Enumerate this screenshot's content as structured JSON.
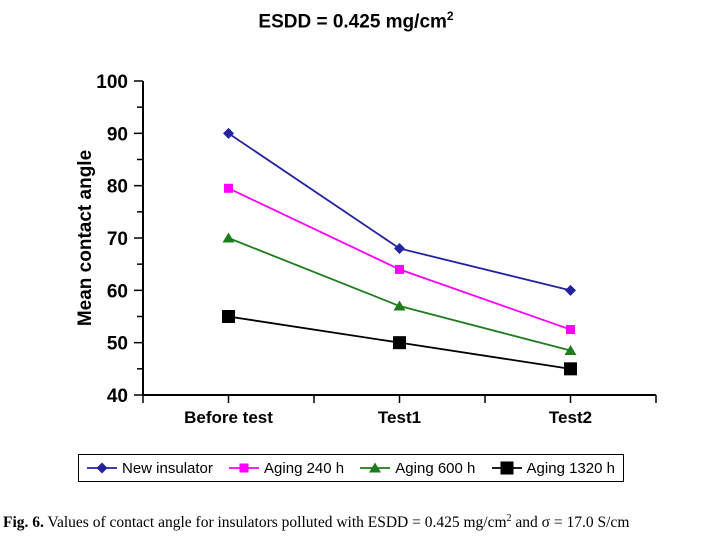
{
  "title": {
    "text": "ESDD = 0.425 mg/cm",
    "superscript": "2"
  },
  "caption": {
    "fig_label": "Fig. 6.",
    "text": " Values of contact angle for insulators polluted with ESDD = 0.425 mg/cm",
    "superscript": "2",
    "text_after": " and σ = 17.0 S/cm"
  },
  "chart_data": {
    "type": "line",
    "title": "ESDD = 0.425 mg/cm2",
    "xlabel": "",
    "ylabel": "Mean contact angle",
    "categories": [
      "Before test",
      "Test1",
      "Test2"
    ],
    "series": [
      {
        "name": "New insulator",
        "values": [
          90,
          68,
          60
        ],
        "color": "#2323a0",
        "marker": "diamond"
      },
      {
        "name": "Aging 240 h",
        "values": [
          79.5,
          64,
          52.5
        ],
        "color": "#ff00ff",
        "marker": "square"
      },
      {
        "name": "Aging 600 h",
        "values": [
          70,
          57,
          48.5
        ],
        "color": "#1d7d1d",
        "marker": "triangle"
      },
      {
        "name": "Aging 1320 h",
        "values": [
          55,
          50,
          45
        ],
        "color": "#000000",
        "marker": "square-large"
      }
    ],
    "ylim": [
      40,
      100
    ],
    "y_major_step": 10,
    "y_minor_step": 5,
    "grid": false,
    "legend_position": "bottom",
    "axis_color": "#000000",
    "background_color": "#ffffff"
  }
}
